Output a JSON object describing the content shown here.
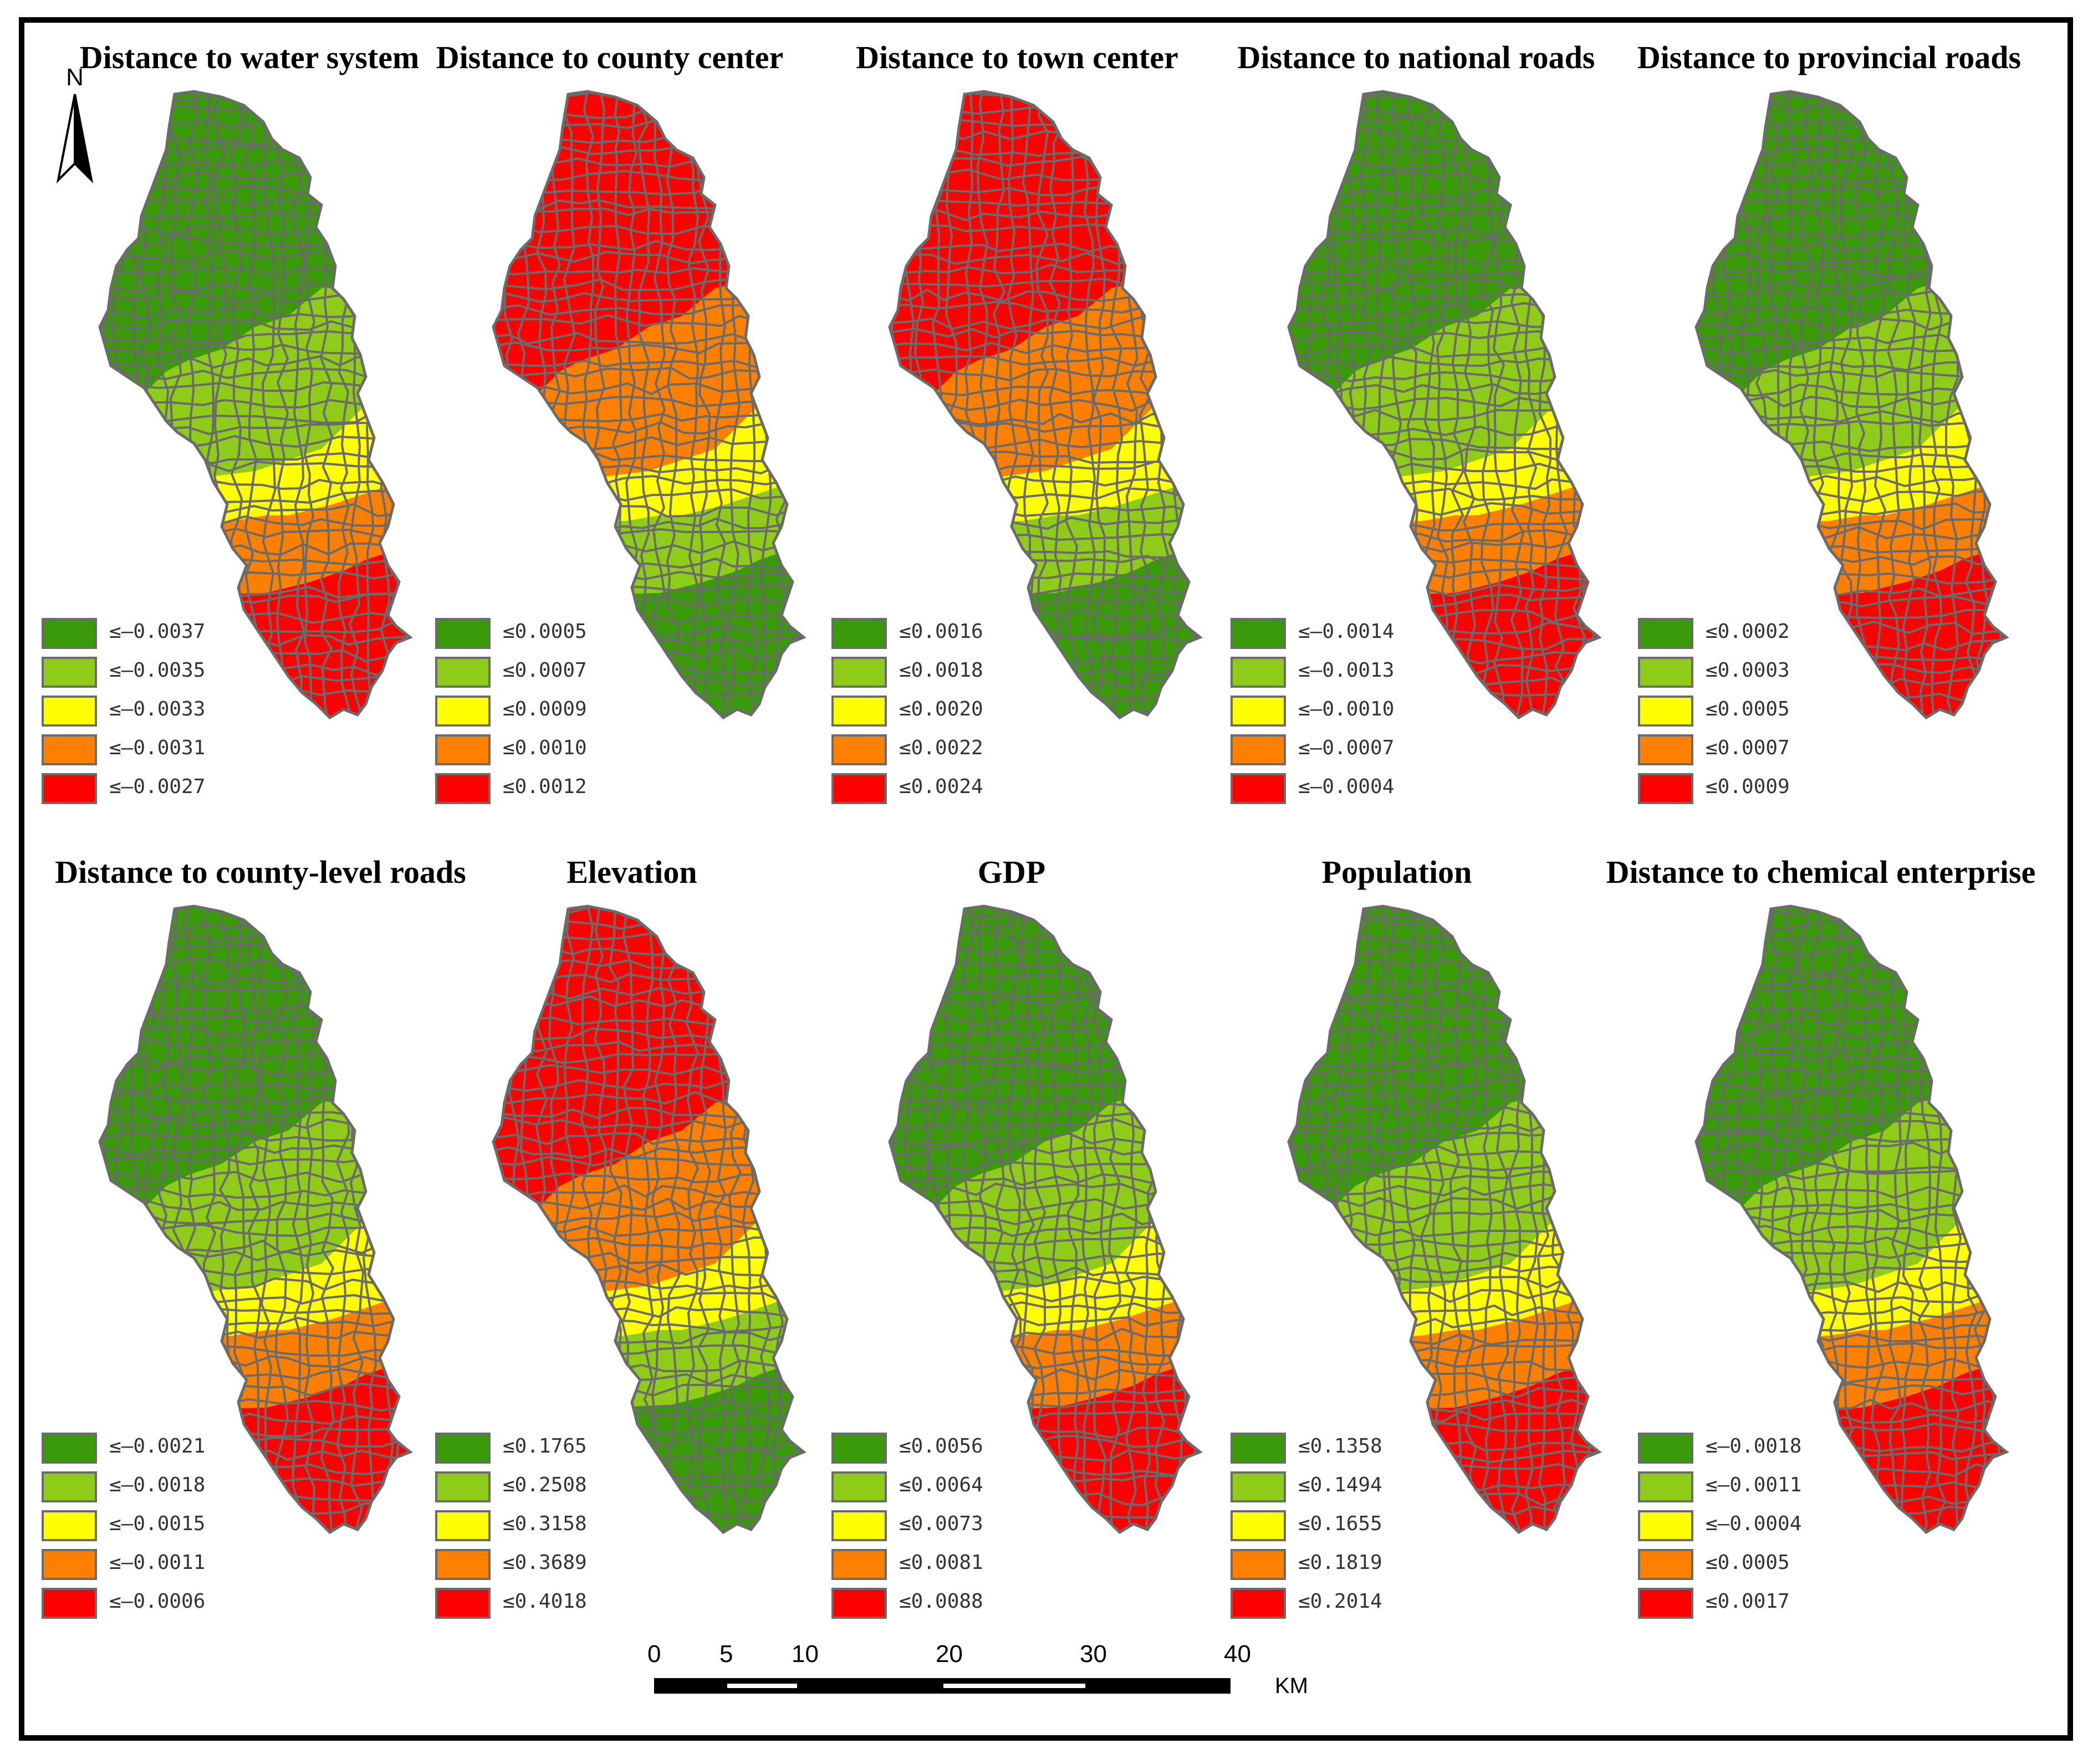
{
  "north_arrow": {
    "letter": "N"
  },
  "colors": {
    "class1": "#3a9a0a",
    "class2": "#8fcc1a",
    "class3": "#ffff00",
    "class4": "#ff8000",
    "class5": "#ff0000",
    "boundary": "#6b6b6b"
  },
  "panels": [
    {
      "title": "Distance to water system",
      "order": [
        "c1",
        "c2",
        "c3",
        "c4",
        "c5"
      ],
      "legend": [
        "≤—0.0037",
        "≤—0.0035",
        "≤—0.0033",
        "≤—0.0031",
        "≤—0.0027"
      ]
    },
    {
      "title": "Distance to county center",
      "order": [
        "c5",
        "c4",
        "c3",
        "c2",
        "c1"
      ],
      "legend": [
        "≤0.0005",
        "≤0.0007",
        "≤0.0009",
        "≤0.0010",
        "≤0.0012"
      ]
    },
    {
      "title": "Distance to town center",
      "order": [
        "c5",
        "c4",
        "c3",
        "c2",
        "c1"
      ],
      "legend": [
        "≤0.0016",
        "≤0.0018",
        "≤0.0020",
        "≤0.0022",
        "≤0.0024"
      ]
    },
    {
      "title": "Distance to national roads",
      "order": [
        "c1",
        "c2",
        "c3",
        "c4",
        "c5"
      ],
      "legend": [
        "≤—0.0014",
        "≤—0.0013",
        "≤—0.0010",
        "≤—0.0007",
        "≤—0.0004"
      ]
    },
    {
      "title": "Distance to provincial roads",
      "order": [
        "c1",
        "c2",
        "c3",
        "c4",
        "c5"
      ],
      "legend": [
        "≤0.0002",
        "≤0.0003",
        "≤0.0005",
        "≤0.0007",
        "≤0.0009"
      ]
    },
    {
      "title": "Distance to county-level roads",
      "order": [
        "c1",
        "c2",
        "c3",
        "c4",
        "c5"
      ],
      "legend": [
        "≤—0.0021",
        "≤—0.0018",
        "≤—0.0015",
        "≤—0.0011",
        "≤—0.0006"
      ]
    },
    {
      "title": "Elevation",
      "order": [
        "c5",
        "c4",
        "c3",
        "c2",
        "c1"
      ],
      "legend": [
        "≤0.1765",
        "≤0.2508",
        "≤0.3158",
        "≤0.3689",
        "≤0.4018"
      ]
    },
    {
      "title": "GDP",
      "order": [
        "c1",
        "c2",
        "c3",
        "c4",
        "c5"
      ],
      "legend": [
        "≤0.0056",
        "≤0.0064",
        "≤0.0073",
        "≤0.0081",
        "≤0.0088"
      ]
    },
    {
      "title": "Population",
      "order": [
        "c1",
        "c2",
        "c3",
        "c4",
        "c5"
      ],
      "legend": [
        "≤0.1358",
        "≤0.1494",
        "≤0.1655",
        "≤0.1819",
        "≤0.2014"
      ]
    },
    {
      "title": "Distance to chemical enterprise",
      "order": [
        "c1",
        "c2",
        "c3",
        "c4",
        "c5"
      ],
      "legend": [
        "≤—0.0018",
        "≤—0.0011",
        "≤—0.0004",
        "≤0.0005",
        "≤0.0017"
      ]
    }
  ],
  "scale_bar": {
    "ticks": [
      "0",
      "5",
      "10",
      "20",
      "30",
      "40"
    ],
    "tick_values": [
      0,
      5,
      10,
      20,
      30,
      40
    ],
    "unit": "KM"
  }
}
